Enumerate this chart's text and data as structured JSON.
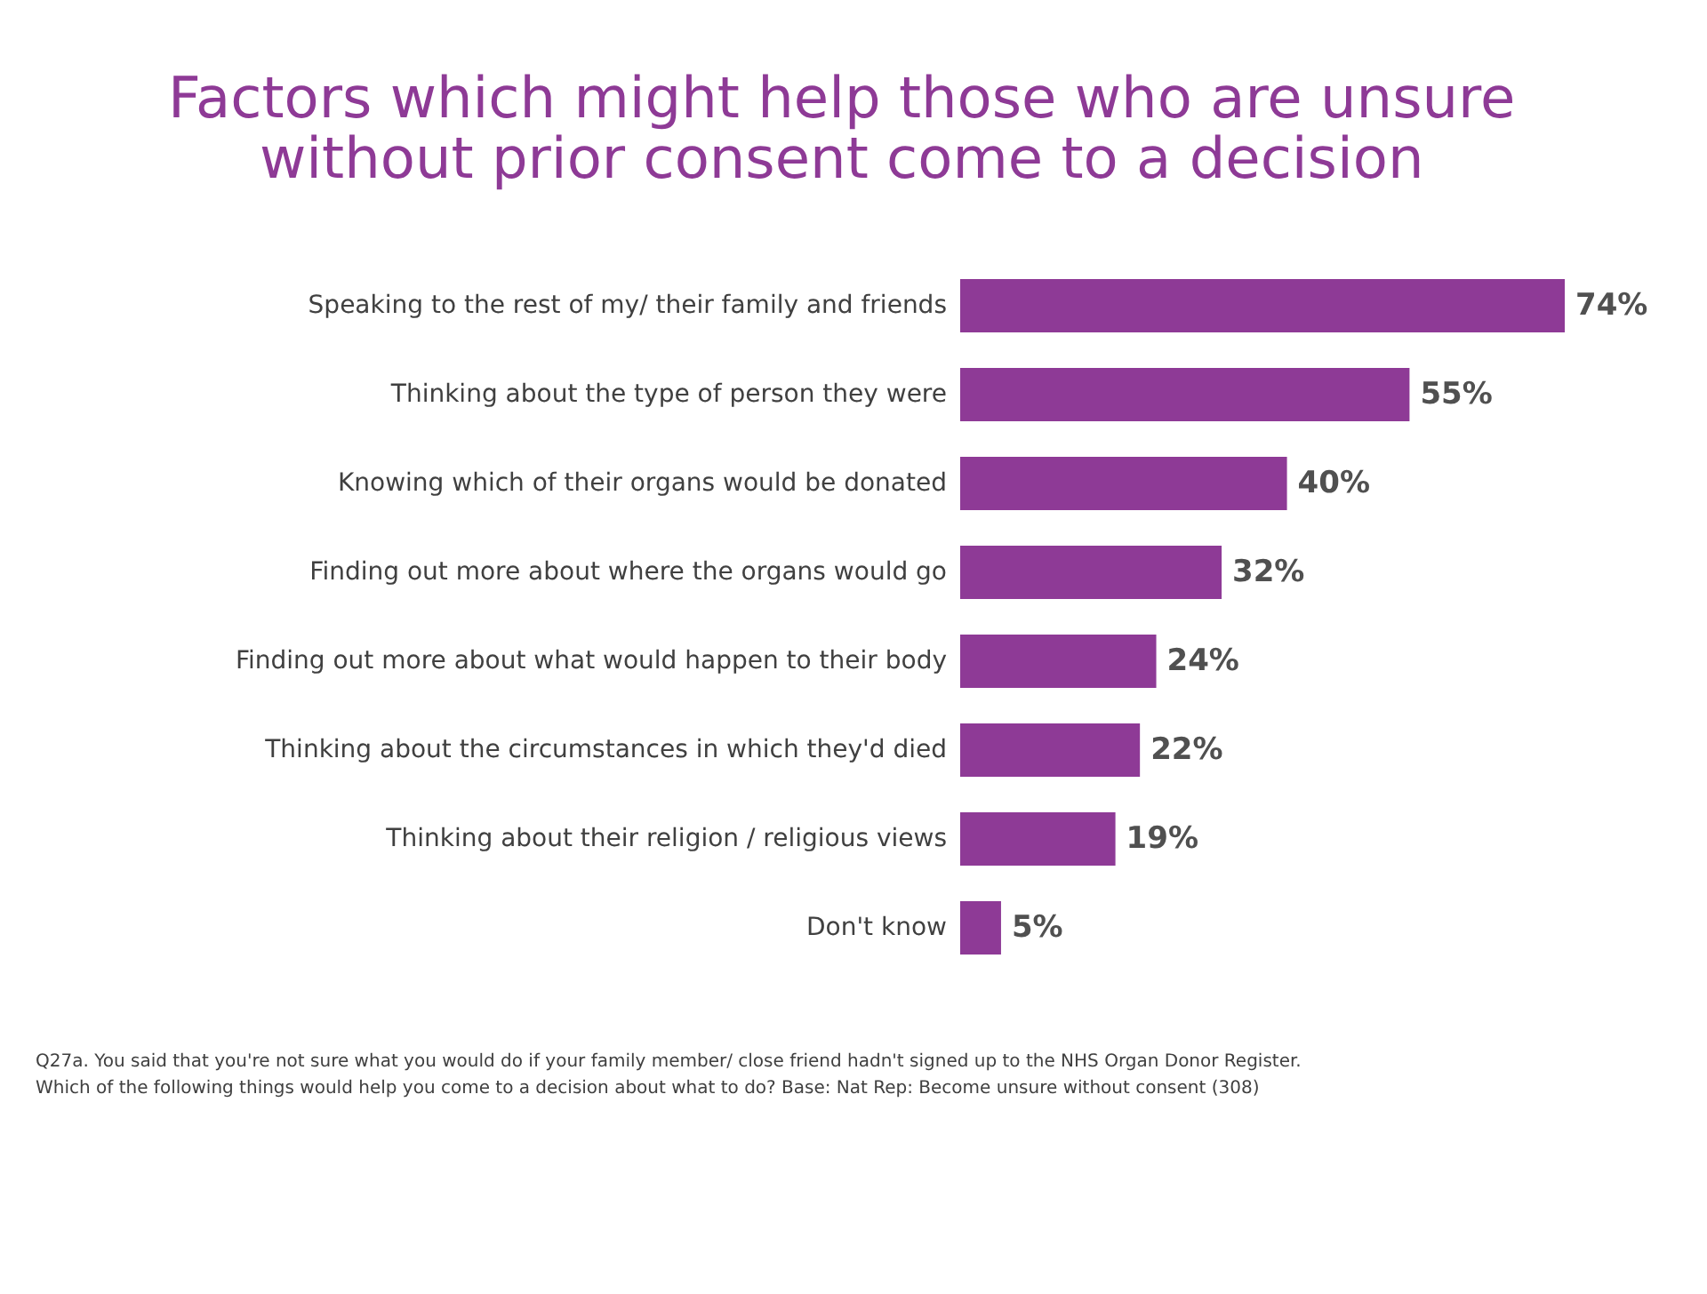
{
  "chart_data": {
    "type": "bar",
    "orientation": "horizontal",
    "title": [
      "Factors which might help those who are unsure",
      "without prior consent come to a decision"
    ],
    "categories": [
      "Speaking to the rest of my/ their family and friends",
      "Thinking about the type of person they were",
      "Knowing which of their organs would be donated",
      "Finding out more about where the organs would go",
      "Finding out more about what would happen to their body",
      "Thinking about the circumstances in which they'd died",
      "Thinking about their religion / religious views",
      "Don't know"
    ],
    "values": [
      74,
      55,
      40,
      32,
      24,
      22,
      19,
      5
    ],
    "value_labels": [
      "74%",
      "55%",
      "40%",
      "32%",
      "24%",
      "22%",
      "19%",
      "5%"
    ],
    "color": "#8e3a96",
    "tick_labels": false,
    "annotations": [
      "Q27a. You said that you're not sure what you would do if your family member/ close friend hadn't signed up to the NHS Organ Donor Register.",
      "Which of the following things would help you come to a decision about what to do? Base: Nat Rep: Become unsure without consent (308)"
    ]
  }
}
